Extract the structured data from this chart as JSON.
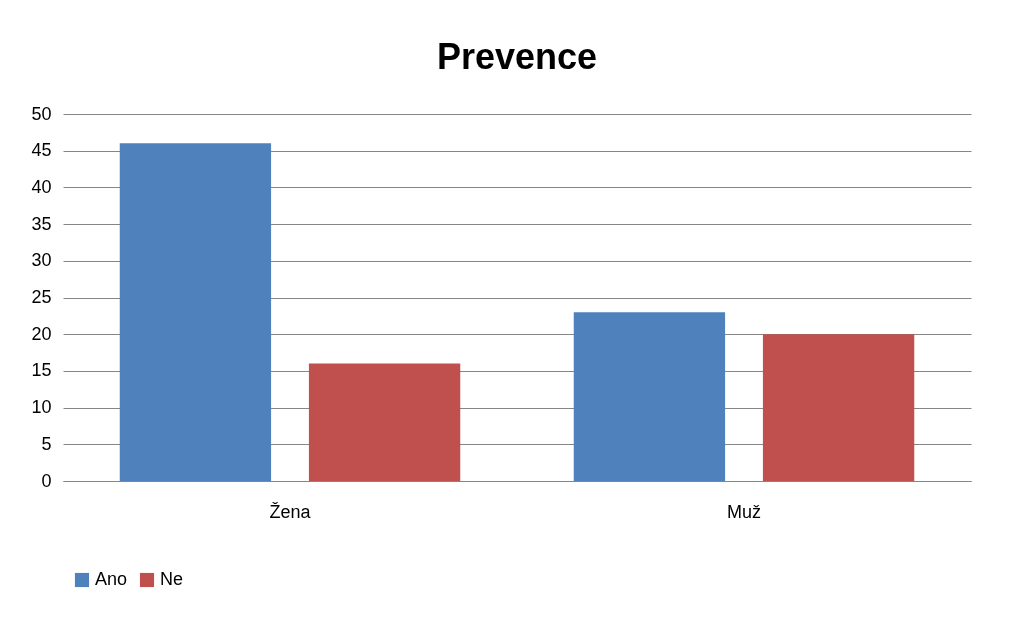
{
  "chart_data": {
    "type": "bar",
    "title": "Prevence",
    "categories": [
      "Žena",
      "Muž"
    ],
    "series": [
      {
        "name": "Ano",
        "color": "#4f81bd",
        "values": [
          46,
          23
        ]
      },
      {
        "name": "Ne",
        "color": "#c0504d",
        "values": [
          16,
          20
        ]
      }
    ],
    "ylim": [
      0,
      50
    ],
    "yticks": [
      0,
      5,
      10,
      15,
      20,
      25,
      30,
      35,
      40,
      45,
      50
    ],
    "grid": "y",
    "legend": "bottom"
  }
}
